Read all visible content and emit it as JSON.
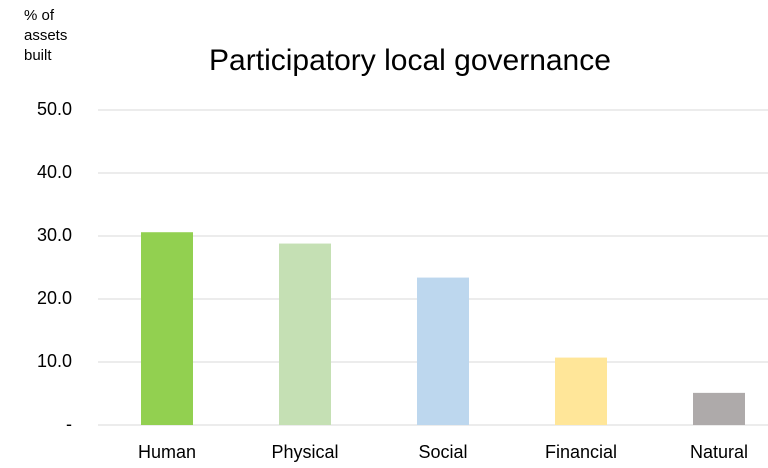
{
  "chart_data": {
    "type": "bar",
    "title": "Participatory local governance",
    "ylabel": "% of assets built",
    "categories": [
      "Human",
      "Physical",
      "Social",
      "Financial",
      "Natural"
    ],
    "values": [
      30.6,
      28.8,
      23.4,
      10.7,
      5.1
    ],
    "colors": [
      "#92d050",
      "#c5e0b4",
      "#bdd7ee",
      "#ffe699",
      "#aeaaaa"
    ],
    "ylim": [
      0,
      50
    ],
    "yticks": [
      {
        "value": 0,
        "label": "-"
      },
      {
        "value": 10,
        "label": "10.0"
      },
      {
        "value": 20,
        "label": "20.0"
      },
      {
        "value": 30,
        "label": "30.0"
      },
      {
        "value": 40,
        "label": "40.0"
      },
      {
        "value": 50,
        "label": "50.0"
      }
    ],
    "grid": true
  }
}
